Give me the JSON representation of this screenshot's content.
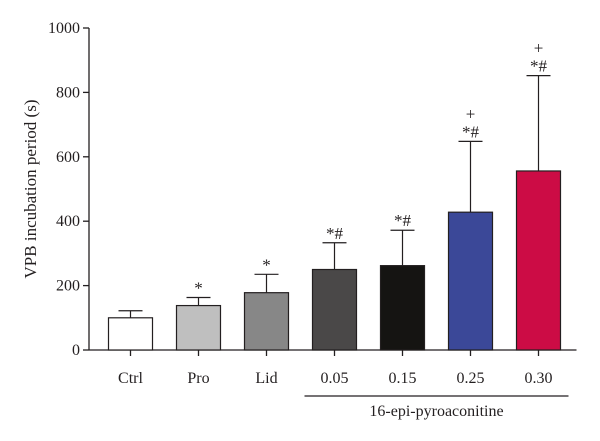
{
  "chart_data": {
    "type": "bar",
    "title": "",
    "xlabel": "",
    "ylabel": "VPB incubation period (s)",
    "ylim": [
      0,
      1000
    ],
    "yticks": [
      0,
      200,
      400,
      600,
      800,
      1000
    ],
    "categories": [
      "Ctrl",
      "Pro",
      "Lid",
      "0.05",
      "0.15",
      "0.25",
      "0.30"
    ],
    "values": [
      100,
      138,
      178,
      250,
      262,
      428,
      556
    ],
    "errors": [
      22,
      25,
      57,
      83,
      110,
      220,
      296
    ],
    "colors": [
      "#ffffff",
      "#bfbfbf",
      "#878787",
      "#4a4848",
      "#151412",
      "#3b4898",
      "#cc0c45"
    ],
    "annotations": [
      [],
      [
        "*"
      ],
      [
        "*"
      ],
      [
        "*#"
      ],
      [
        "*#"
      ],
      [
        "+",
        "*#"
      ],
      [
        "+",
        "*#"
      ]
    ],
    "group_label": {
      "text": "16-epi-pyroaconitine",
      "categories": [
        "0.05",
        "0.15",
        "0.25",
        "0.30"
      ]
    },
    "grid": false,
    "legend": "none"
  }
}
